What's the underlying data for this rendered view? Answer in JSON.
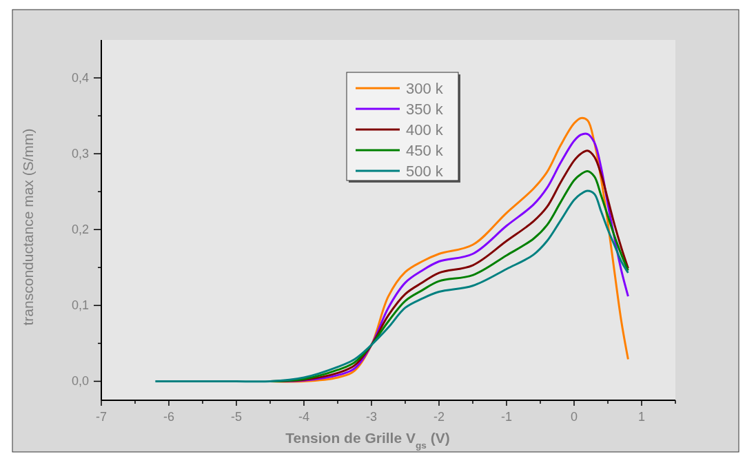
{
  "chart_data": {
    "type": "line",
    "xlabel": "Tension de Grille V$_{gs}$ (V)",
    "ylabel": "transconductance max (S/mm)",
    "xlim": [
      -7,
      1.5
    ],
    "ylim": [
      -0.025,
      0.45
    ],
    "xticks": [
      -7,
      {
        "value": -6.5,
        "label": null
      },
      -6,
      {
        "value": -5.5,
        "label": null
      },
      -5,
      {
        "value": -4.5,
        "label": null
      },
      -4,
      {
        "value": -3.5,
        "label": null
      },
      -3,
      {
        "value": -2.5,
        "label": null
      },
      -2,
      {
        "value": -1.5,
        "label": null
      },
      -1,
      {
        "value": -0.5,
        "label": null
      },
      0,
      {
        "value": 0.5,
        "label": null
      },
      1,
      {
        "value": 1.5,
        "label": null
      }
    ],
    "yticks": [
      {
        "value": 0,
        "label": "0,0"
      },
      {
        "value": 0.05,
        "label": null
      },
      {
        "value": 0.1,
        "label": "0,1"
      },
      {
        "value": 0.15,
        "label": null
      },
      {
        "value": 0.2,
        "label": "0,2"
      },
      {
        "value": 0.25,
        "label": null
      },
      {
        "value": 0.3,
        "label": "0,3"
      },
      {
        "value": 0.35,
        "label": null
      },
      {
        "value": 0.4,
        "label": "0,4"
      }
    ],
    "grid": false,
    "legend": "top",
    "marker": "none",
    "line_style": "solid",
    "x": [
      -6.2,
      -5,
      -4.5,
      -4,
      -3.5,
      -3.25,
      -3,
      -2.75,
      -2.5,
      -2.25,
      -2,
      -1.5,
      -1,
      -0.6,
      -0.4,
      -0.2,
      0,
      0.1,
      0.2,
      0.3,
      0.4,
      0.5,
      0.6,
      0.7,
      0.8
    ],
    "series": [
      {
        "name": "300 k",
        "color": "#ff8000",
        "values": [
          null,
          null,
          0,
          0,
          0.005,
          0.014,
          0.048,
          0.112,
          0.144,
          0.158,
          0.168,
          0.18,
          0.222,
          0.254,
          0.276,
          0.311,
          0.34,
          0.347,
          0.344,
          0.315,
          0.267,
          0.209,
          0.143,
          0.079,
          0.029
        ]
      },
      {
        "name": "350 k",
        "color": "#8000ff",
        "values": [
          null,
          null,
          0,
          0.001,
          0.008,
          0.017,
          0.048,
          0.097,
          0.13,
          0.146,
          0.158,
          0.168,
          0.205,
          0.233,
          0.255,
          0.288,
          0.317,
          0.325,
          0.326,
          0.315,
          0.282,
          0.233,
          0.188,
          0.146,
          0.112
        ]
      },
      {
        "name": "400 k",
        "color": "#800000",
        "values": [
          null,
          null,
          0,
          0.002,
          0.011,
          0.021,
          0.048,
          0.087,
          0.115,
          0.13,
          0.143,
          0.153,
          0.185,
          0.211,
          0.23,
          0.262,
          0.291,
          0.3,
          0.304,
          0.296,
          0.273,
          0.24,
          0.206,
          0.176,
          0.149
        ]
      },
      {
        "name": "450 k",
        "color": "#008000",
        "values": [
          null,
          null,
          0,
          0.003,
          0.015,
          0.025,
          0.048,
          0.079,
          0.106,
          0.12,
          0.132,
          0.14,
          0.166,
          0.188,
          0.206,
          0.236,
          0.265,
          0.273,
          0.277,
          0.27,
          0.245,
          0.218,
          0.191,
          0.167,
          0.146
        ]
      },
      {
        "name": "500 k",
        "color": "#008080",
        "values": [
          0,
          0,
          0,
          0.005,
          0.019,
          0.029,
          0.048,
          0.071,
          0.097,
          0.109,
          0.118,
          0.126,
          0.148,
          0.167,
          0.185,
          0.212,
          0.239,
          0.247,
          0.251,
          0.247,
          0.224,
          0.2,
          0.179,
          0.158,
          0.143
        ]
      }
    ]
  }
}
